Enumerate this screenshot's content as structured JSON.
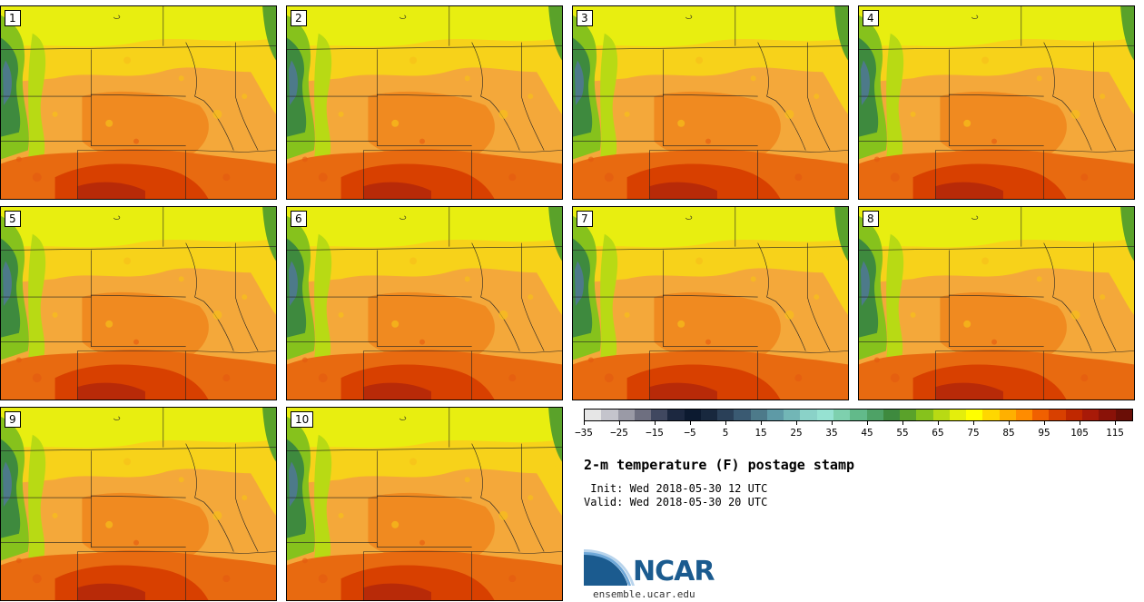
{
  "panels": [
    {
      "label": "1"
    },
    {
      "label": "2"
    },
    {
      "label": "3"
    },
    {
      "label": "4"
    },
    {
      "label": "5"
    },
    {
      "label": "6"
    },
    {
      "label": "7"
    },
    {
      "label": "8"
    },
    {
      "label": "9"
    },
    {
      "label": "10"
    }
  ],
  "colorbar": {
    "colors": [
      "#e6e6e6",
      "#c4c4cc",
      "#9a9aa6",
      "#6e6f80",
      "#404860",
      "#1c2840",
      "#0c1a30",
      "#18283e",
      "#2a4058",
      "#3a5a72",
      "#4d7a8a",
      "#5e9aa6",
      "#72b6b6",
      "#8ad2c8",
      "#96e2d2",
      "#7ed0ae",
      "#62ba8a",
      "#4ea266",
      "#3e8a3e",
      "#5aa22a",
      "#86c21c",
      "#b8da14",
      "#e4ee0c",
      "#ffff00",
      "#ffd700",
      "#ffb000",
      "#ff8c00",
      "#f06000",
      "#d84000",
      "#c02800",
      "#a81a08",
      "#8a1208",
      "#6a0e06"
    ],
    "tick_labels": [
      "−35",
      "−25",
      "−15",
      "−5",
      "5",
      "15",
      "25",
      "35",
      "45",
      "55",
      "65",
      "75",
      "85",
      "95",
      "105",
      "115"
    ]
  },
  "title": "2-m temperature (F) postage stamp",
  "init": " Init: Wed 2018-05-30 12 UTC",
  "valid": "Valid: Wed 2018-05-30 20 UTC",
  "logo": {
    "text": "NCAR",
    "site": "ensemble.ucar.edu"
  }
}
